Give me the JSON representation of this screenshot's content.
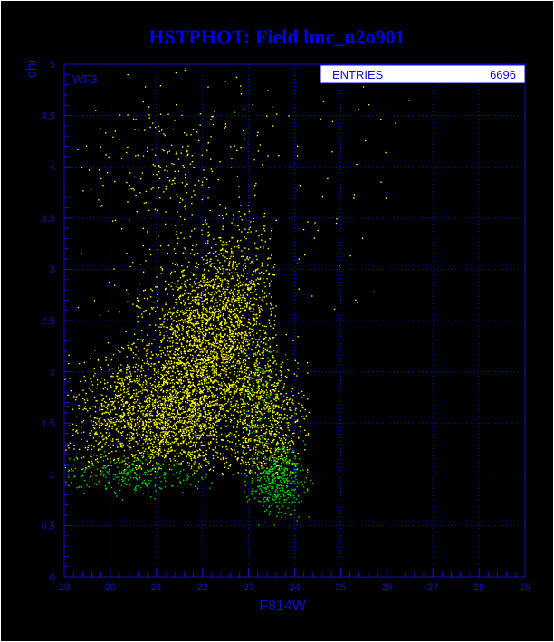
{
  "chart_data": {
    "type": "scatter",
    "title": "HSTPHOT: Field lmc_u2o901",
    "xlabel": "F814W",
    "ylabel": "chi",
    "xlim": [
      19,
      29
    ],
    "ylim": [
      0,
      5
    ],
    "x_ticks": [
      "19",
      "20",
      "21",
      "22",
      "23",
      "24",
      "25",
      "26",
      "27",
      "28",
      "29"
    ],
    "y_ticks": [
      "0",
      "0.5",
      "1",
      "1.5",
      "2",
      "2.5",
      "3",
      "3.5",
      "4",
      "4.5",
      "5"
    ],
    "grid": true,
    "annotation": "WF3",
    "stats_box": {
      "label": "ENTRIES",
      "value": "6696"
    },
    "colors": {
      "background": "#000000",
      "frame": "#ffffff",
      "axis": "#1010c8",
      "title": "#0000ee",
      "yellow": "#ffff00",
      "green": "#00dd00"
    },
    "series": [
      {
        "color": "yellow",
        "clusters": [
          {
            "n": 2300,
            "mx": 21.9,
            "sx": 0.75,
            "my": 2.0,
            "sy": 0.55,
            "xmin": 19.0,
            "xmax": 23.6,
            "ymin": 1.0,
            "ymax": 3.6
          },
          {
            "n": 1350,
            "mx": 20.8,
            "sx": 0.85,
            "my": 1.55,
            "sy": 0.28,
            "xmin": 19.0,
            "xmax": 23.4,
            "ymin": 1.05,
            "ymax": 2.4
          },
          {
            "n": 900,
            "mx": 22.6,
            "sx": 0.55,
            "my": 2.6,
            "sy": 0.45,
            "xmin": 21.3,
            "xmax": 23.6,
            "ymin": 1.8,
            "ymax": 3.6
          },
          {
            "n": 600,
            "mx": 23.4,
            "sx": 0.45,
            "my": 1.5,
            "sy": 0.35,
            "xmin": 22.8,
            "xmax": 24.3,
            "ymin": 1.0,
            "ymax": 2.4
          },
          {
            "n": 260,
            "mx": 21.5,
            "sx": 1.0,
            "my": 4.0,
            "sy": 0.45,
            "xmin": 19.2,
            "xmax": 24.2,
            "ymin": 3.4,
            "ymax": 5.0
          },
          {
            "n": 40,
            "mx": 25.0,
            "sx": 0.8,
            "my": 3.5,
            "sy": 0.9,
            "xmin": 24.0,
            "xmax": 26.6,
            "ymin": 2.6,
            "ymax": 4.8
          }
        ]
      },
      {
        "color": "green",
        "clusters": [
          {
            "n": 420,
            "mx": 23.6,
            "sx": 0.3,
            "my": 0.95,
            "sy": 0.16,
            "xmin": 22.8,
            "xmax": 24.4,
            "ymin": 0.45,
            "ymax": 1.35
          },
          {
            "n": 280,
            "mx": 20.5,
            "sx": 0.85,
            "my": 1.0,
            "sy": 0.1,
            "xmin": 19.0,
            "xmax": 22.5,
            "ymin": 0.65,
            "ymax": 1.25
          },
          {
            "n": 120,
            "mx": 23.2,
            "sx": 0.3,
            "my": 1.75,
            "sy": 0.35,
            "xmin": 22.6,
            "xmax": 24.0,
            "ymin": 1.2,
            "ymax": 2.4
          }
        ]
      }
    ]
  }
}
